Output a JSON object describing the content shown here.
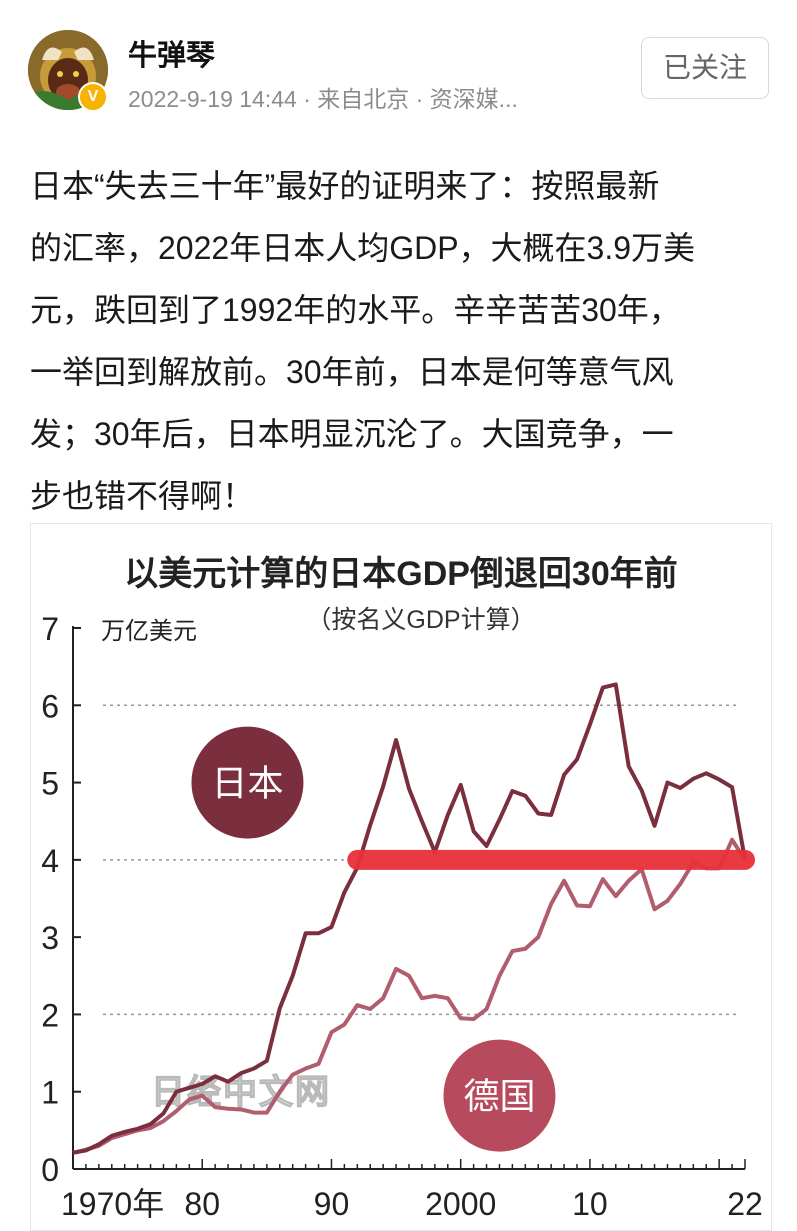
{
  "post": {
    "author": "牛弹琴",
    "meta": "2022-9-19 14:44 · 来自北京 · 资深媒...",
    "follow_label": "已关注",
    "verified_glyph": "V",
    "text_lines": [
      "日本“失去三十年”最好的证明来了：按照最新",
      "的汇率，2022年日本人均GDP，大概在3.9万美",
      "元，跌回到了1992年的水平。辛辛苦苦30年，",
      "一举回到解放前。30年前，日本是何等意气风",
      "发；30年后，日本明显沉沦了。大国竞争，一",
      "步也错不得啊！"
    ]
  },
  "colors": {
    "japan": "#7a2e3e",
    "germany": "#b05e6d",
    "highlight": "#e8303a",
    "japan_bubble": "#7a2e3e",
    "germany_bubble": "#b74a5c"
  },
  "chart_data": {
    "type": "line",
    "title": "以美元计算的日本GDP倒退回30年前",
    "subtitle": "（按名义GDP计算）",
    "ylabel": "万亿美元",
    "ylim": [
      0,
      7
    ],
    "xlim": [
      1970,
      2022
    ],
    "yticks": [
      "0",
      "1",
      "2",
      "3",
      "4",
      "5",
      "6",
      "7"
    ],
    "xtick_values": [
      1970,
      1980,
      1990,
      2000,
      2010,
      2022
    ],
    "xtick_labels": [
      "1970年",
      "80",
      "90",
      "2000",
      "10",
      "22"
    ],
    "grid_y": [
      2,
      4,
      6
    ],
    "watermark": "日经中文网",
    "highlight_level": 4,
    "highlight_range": [
      1992,
      2022
    ],
    "series": [
      {
        "name": "日本",
        "x": [
          1970,
          1971,
          1972,
          1973,
          1974,
          1975,
          1976,
          1977,
          1978,
          1979,
          1980,
          1981,
          1982,
          1983,
          1984,
          1985,
          1986,
          1987,
          1988,
          1989,
          1990,
          1991,
          1992,
          1993,
          1994,
          1995,
          1996,
          1997,
          1998,
          1999,
          2000,
          2001,
          2002,
          2003,
          2004,
          2005,
          2006,
          2007,
          2008,
          2009,
          2010,
          2011,
          2012,
          2013,
          2014,
          2015,
          2016,
          2017,
          2018,
          2019,
          2020,
          2021,
          2022
        ],
        "values": [
          0.21,
          0.24,
          0.32,
          0.43,
          0.48,
          0.52,
          0.58,
          0.72,
          1.0,
          1.05,
          1.1,
          1.2,
          1.13,
          1.24,
          1.3,
          1.4,
          2.08,
          2.5,
          3.05,
          3.05,
          3.13,
          3.58,
          3.9,
          4.45,
          4.95,
          5.55,
          4.92,
          4.5,
          4.1,
          4.58,
          4.97,
          4.37,
          4.18,
          4.52,
          4.89,
          4.83,
          4.6,
          4.58,
          5.1,
          5.3,
          5.75,
          6.23,
          6.27,
          5.21,
          4.9,
          4.44,
          5.0,
          4.93,
          5.05,
          5.12,
          5.04,
          4.94,
          4.0
        ],
        "bubble_label": "日本"
      },
      {
        "name": "德国",
        "x": [
          1970,
          1971,
          1972,
          1973,
          1974,
          1975,
          1976,
          1977,
          1978,
          1979,
          1980,
          1981,
          1982,
          1983,
          1984,
          1985,
          1986,
          1987,
          1988,
          1989,
          1990,
          1991,
          1992,
          1993,
          1994,
          1995,
          1996,
          1997,
          1998,
          1999,
          2000,
          2001,
          2002,
          2003,
          2004,
          2005,
          2006,
          2007,
          2008,
          2009,
          2010,
          2011,
          2012,
          2013,
          2014,
          2015,
          2016,
          2017,
          2018,
          2019,
          2020,
          2021,
          2022
        ],
        "values": [
          0.21,
          0.25,
          0.3,
          0.4,
          0.45,
          0.5,
          0.53,
          0.62,
          0.75,
          0.9,
          0.95,
          0.8,
          0.78,
          0.77,
          0.73,
          0.73,
          1.0,
          1.22,
          1.3,
          1.36,
          1.77,
          1.87,
          2.12,
          2.07,
          2.21,
          2.59,
          2.5,
          2.21,
          2.24,
          2.21,
          1.95,
          1.94,
          2.07,
          2.5,
          2.82,
          2.85,
          3.0,
          3.43,
          3.73,
          3.41,
          3.4,
          3.75,
          3.53,
          3.73,
          3.88,
          3.36,
          3.47,
          3.69,
          3.97,
          3.89,
          3.89,
          4.26,
          4.0
        ],
        "bubble_label": "德国"
      }
    ]
  }
}
